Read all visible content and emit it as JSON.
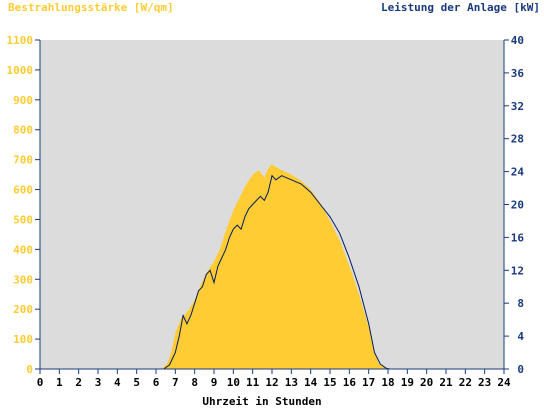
{
  "chart_data": {
    "type": "area",
    "title": "",
    "xlabel": "Uhrzeit in Stunden",
    "ylabel_left": "Bestrahlungsstärke [W/qm]",
    "ylabel_right": "Leistung der Anlage [kW]",
    "x_ticks": [
      "0",
      "1",
      "2",
      "3",
      "4",
      "5",
      "6",
      "7",
      "8",
      "9",
      "10",
      "11",
      "12",
      "13",
      "14",
      "15",
      "16",
      "17",
      "18",
      "19",
      "20",
      "21",
      "22",
      "23",
      "24"
    ],
    "ylim_left": [
      0,
      1100
    ],
    "y_ticks_left": [
      "0",
      "100",
      "200",
      "300",
      "400",
      "500",
      "600",
      "700",
      "800",
      "900",
      "1000",
      "1100"
    ],
    "ylim_right": [
      0,
      40
    ],
    "y_ticks_right": [
      "0",
      "4",
      "8",
      "12",
      "16",
      "20",
      "24",
      "28",
      "32",
      "36",
      "40"
    ],
    "xlim": [
      0,
      24
    ],
    "grid": false,
    "colors": {
      "plot_background": "#dcdcdc",
      "irradiance_fill": "#ffcc33",
      "power_line": "#001a66",
      "left_axis_text": "#ffcc33",
      "right_axis_text": "#1a3a80",
      "axis_line": "#1a3a80"
    },
    "series": [
      {
        "kind": "area",
        "axis": "left",
        "x": [
          0,
          6.3,
          6.6,
          6.8,
          7.0,
          7.3,
          7.6,
          8.0,
          8.3,
          8.6,
          9.0,
          9.3,
          9.6,
          10.0,
          10.3,
          10.6,
          11.0,
          11.3,
          11.6,
          11.8,
          12.0,
          12.2,
          12.5,
          13.0,
          13.5,
          14.0,
          14.5,
          15.0,
          15.5,
          16.0,
          16.5,
          17.0,
          17.3,
          17.5,
          17.8,
          18.0,
          18.2,
          24
        ],
        "values": [
          0,
          0,
          20,
          60,
          120,
          170,
          190,
          230,
          280,
          320,
          360,
          400,
          460,
          530,
          570,
          610,
          650,
          665,
          640,
          670,
          685,
          675,
          665,
          650,
          630,
          600,
          555,
          495,
          430,
          345,
          250,
          140,
          60,
          20,
          5,
          0,
          0,
          0
        ]
      },
      {
        "kind": "line",
        "axis": "right",
        "x": [
          0,
          6.4,
          6.7,
          7.0,
          7.2,
          7.4,
          7.6,
          7.8,
          8.0,
          8.2,
          8.4,
          8.6,
          8.8,
          9.0,
          9.2,
          9.4,
          9.6,
          9.8,
          10.0,
          10.2,
          10.4,
          10.6,
          10.8,
          11.0,
          11.2,
          11.4,
          11.6,
          11.8,
          12.0,
          12.2,
          12.5,
          13.0,
          13.5,
          14.0,
          14.5,
          15.0,
          15.5,
          16.0,
          16.5,
          17.0,
          17.3,
          17.6,
          17.9,
          18.1,
          24
        ],
        "values": [
          0,
          0,
          0.5,
          2.0,
          4.0,
          6.5,
          5.5,
          6.5,
          8.0,
          9.5,
          10.0,
          11.5,
          12.0,
          10.5,
          12.5,
          13.5,
          14.5,
          16.0,
          17.0,
          17.5,
          17.0,
          18.5,
          19.5,
          20.0,
          20.5,
          21.0,
          20.5,
          21.5,
          23.5,
          23.0,
          23.5,
          23.0,
          22.5,
          21.5,
          20.0,
          18.5,
          16.5,
          13.5,
          10.0,
          5.5,
          2.0,
          0.6,
          0.1,
          0,
          0
        ]
      }
    ]
  }
}
